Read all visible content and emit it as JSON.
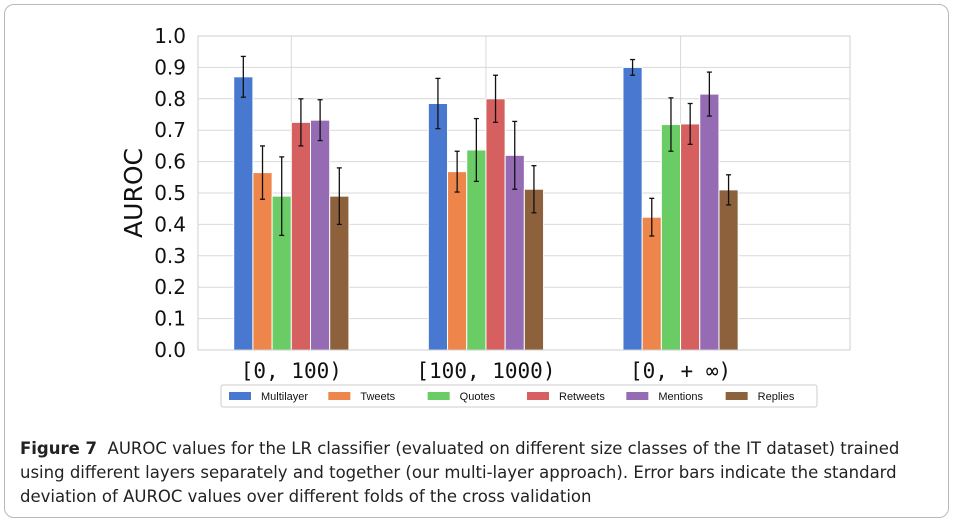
{
  "caption": {
    "label": "Figure 7",
    "text": "AUROC values for the LR classifier (evaluated on different size classes of the IT dataset) trained using different layers separately and together (our multi-layer approach). Error bars indicate the standard deviation of AUROC values over different folds of the cross validation"
  },
  "chart_data": {
    "type": "bar",
    "ylabel": "AUROC",
    "xlabel": "",
    "ylim": [
      0.0,
      1.0
    ],
    "yticks": [
      "0.0",
      "0.1",
      "0.2",
      "0.3",
      "0.4",
      "0.5",
      "0.6",
      "0.7",
      "0.8",
      "0.9",
      "1.0"
    ],
    "grid": true,
    "legend_position": "bottom",
    "categories": [
      "[0, 100)",
      "[100, 1000)",
      "[0, + ∞)"
    ],
    "series": [
      {
        "name": "Multilayer",
        "color": "#4878d0",
        "values": [
          0.87,
          0.785,
          0.9
        ],
        "errors": [
          0.065,
          0.08,
          0.025
        ]
      },
      {
        "name": "Tweets",
        "color": "#ee854a",
        "values": [
          0.565,
          0.568,
          0.423
        ],
        "errors": [
          0.085,
          0.065,
          0.06
        ]
      },
      {
        "name": "Quotes",
        "color": "#6acc64",
        "values": [
          0.49,
          0.637,
          0.718
        ],
        "errors": [
          0.125,
          0.1,
          0.085
        ]
      },
      {
        "name": "Retweets",
        "color": "#d65f5f",
        "values": [
          0.725,
          0.8,
          0.72
        ],
        "errors": [
          0.075,
          0.075,
          0.065
        ]
      },
      {
        "name": "Mentions",
        "color": "#956cb4",
        "values": [
          0.732,
          0.62,
          0.815
        ],
        "errors": [
          0.065,
          0.108,
          0.07
        ]
      },
      {
        "name": "Replies",
        "color": "#8c613c",
        "values": [
          0.49,
          0.512,
          0.51
        ],
        "errors": [
          0.09,
          0.075,
          0.048
        ]
      }
    ]
  }
}
